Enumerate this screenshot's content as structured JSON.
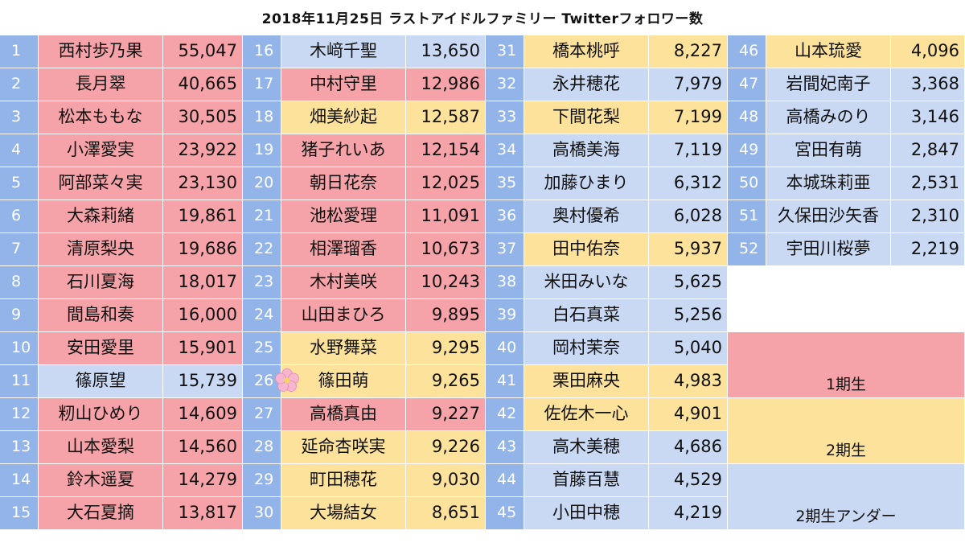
{
  "title": "2018年11月25日 ラストアイドルファミリー Twitterフォロワー数",
  "colors": {
    "gen1": "#f5a3a8",
    "gen2": "#fde29b",
    "gen2_under": "#c9d9f4",
    "number_cell": "#93b4e8"
  },
  "legend": {
    "gen1": "1期生",
    "gen2": "2期生",
    "gen2_under": "2期生アンダー"
  },
  "rows": [
    {
      "rank": "1",
      "name": "西村歩乃果",
      "followers": "55,047",
      "group": "g1"
    },
    {
      "rank": "2",
      "name": "長月翠",
      "followers": "40,665",
      "group": "g1"
    },
    {
      "rank": "3",
      "name": "松本ももな",
      "followers": "30,505",
      "group": "g1"
    },
    {
      "rank": "4",
      "name": "小澤愛実",
      "followers": "23,922",
      "group": "g1"
    },
    {
      "rank": "5",
      "name": "阿部菜々実",
      "followers": "23,130",
      "group": "g1"
    },
    {
      "rank": "6",
      "name": "大森莉緒",
      "followers": "19,861",
      "group": "g1"
    },
    {
      "rank": "7",
      "name": "清原梨央",
      "followers": "19,686",
      "group": "g1"
    },
    {
      "rank": "8",
      "name": "石川夏海",
      "followers": "18,017",
      "group": "g1"
    },
    {
      "rank": "9",
      "name": "間島和奏",
      "followers": "16,000",
      "group": "g1"
    },
    {
      "rank": "10",
      "name": "安田愛里",
      "followers": "15,901",
      "group": "g1"
    },
    {
      "rank": "11",
      "name": "篠原望",
      "followers": "15,739",
      "group": "g3"
    },
    {
      "rank": "12",
      "name": "籾山ひめり",
      "followers": "14,609",
      "group": "g1"
    },
    {
      "rank": "13",
      "name": "山本愛梨",
      "followers": "14,560",
      "group": "g1"
    },
    {
      "rank": "14",
      "name": "鈴木遥夏",
      "followers": "14,279",
      "group": "g1"
    },
    {
      "rank": "15",
      "name": "大石夏摘",
      "followers": "13,817",
      "group": "g1"
    },
    {
      "rank": "16",
      "name": "木﨑千聖",
      "followers": "13,650",
      "group": "g3"
    },
    {
      "rank": "17",
      "name": "中村守里",
      "followers": "12,986",
      "group": "g1"
    },
    {
      "rank": "18",
      "name": "畑美紗起",
      "followers": "12,587",
      "group": "g2"
    },
    {
      "rank": "19",
      "name": "猪子れいあ",
      "followers": "12,154",
      "group": "g1"
    },
    {
      "rank": "20",
      "name": "朝日花奈",
      "followers": "12,025",
      "group": "g1"
    },
    {
      "rank": "21",
      "name": "池松愛理",
      "followers": "11,091",
      "group": "g1"
    },
    {
      "rank": "22",
      "name": "相澤瑠香",
      "followers": "10,673",
      "group": "g1"
    },
    {
      "rank": "23",
      "name": "木村美咲",
      "followers": "10,243",
      "group": "g1"
    },
    {
      "rank": "24",
      "name": "山田まひろ",
      "followers": "9,895",
      "group": "g1"
    },
    {
      "rank": "25",
      "name": "水野舞菜",
      "followers": "9,295",
      "group": "g2"
    },
    {
      "rank": "26",
      "name": "篠田萌",
      "followers": "9,265",
      "group": "g2",
      "flower": true
    },
    {
      "rank": "27",
      "name": "高橋真由",
      "followers": "9,227",
      "group": "g1"
    },
    {
      "rank": "28",
      "name": "延命杏咲実",
      "followers": "9,226",
      "group": "g2"
    },
    {
      "rank": "29",
      "name": "町田穂花",
      "followers": "9,030",
      "group": "g2"
    },
    {
      "rank": "30",
      "name": "大場結女",
      "followers": "8,651",
      "group": "g2"
    },
    {
      "rank": "31",
      "name": "橋本桃呼",
      "followers": "8,227",
      "group": "g2"
    },
    {
      "rank": "32",
      "name": "永井穂花",
      "followers": "7,979",
      "group": "g3"
    },
    {
      "rank": "33",
      "name": "下間花梨",
      "followers": "7,199",
      "group": "g2"
    },
    {
      "rank": "34",
      "name": "高橋美海",
      "followers": "7,119",
      "group": "g3"
    },
    {
      "rank": "35",
      "name": "加藤ひまり",
      "followers": "6,312",
      "group": "g3"
    },
    {
      "rank": "36",
      "name": "奥村優希",
      "followers": "6,028",
      "group": "g3"
    },
    {
      "rank": "37",
      "name": "田中佑奈",
      "followers": "5,937",
      "group": "g2"
    },
    {
      "rank": "38",
      "name": "米田みいな",
      "followers": "5,625",
      "group": "g3"
    },
    {
      "rank": "39",
      "name": "白石真菜",
      "followers": "5,256",
      "group": "g3"
    },
    {
      "rank": "40",
      "name": "岡村茉奈",
      "followers": "5,040",
      "group": "g3"
    },
    {
      "rank": "41",
      "name": "栗田麻央",
      "followers": "4,983",
      "group": "g2"
    },
    {
      "rank": "42",
      "name": "佐佐木一心",
      "followers": "4,901",
      "group": "g2"
    },
    {
      "rank": "43",
      "name": "高木美穂",
      "followers": "4,686",
      "group": "g3"
    },
    {
      "rank": "44",
      "name": "首藤百慧",
      "followers": "4,529",
      "group": "g3"
    },
    {
      "rank": "45",
      "name": "小田中穂",
      "followers": "4,219",
      "group": "g3"
    },
    {
      "rank": "46",
      "name": "山本琉愛",
      "followers": "4,096",
      "group": "g2"
    },
    {
      "rank": "47",
      "name": "岩間妃南子",
      "followers": "3,368",
      "group": "g3"
    },
    {
      "rank": "48",
      "name": "高橋みのり",
      "followers": "3,146",
      "group": "g3"
    },
    {
      "rank": "49",
      "name": "宮田有萌",
      "followers": "2,847",
      "group": "g3"
    },
    {
      "rank": "50",
      "name": "本城珠莉亜",
      "followers": "2,531",
      "group": "g3"
    },
    {
      "rank": "51",
      "name": "久保田沙矢香",
      "followers": "2,310",
      "group": "g3"
    },
    {
      "rank": "52",
      "name": "宇田川桜夢",
      "followers": "2,219",
      "group": "g3"
    }
  ]
}
